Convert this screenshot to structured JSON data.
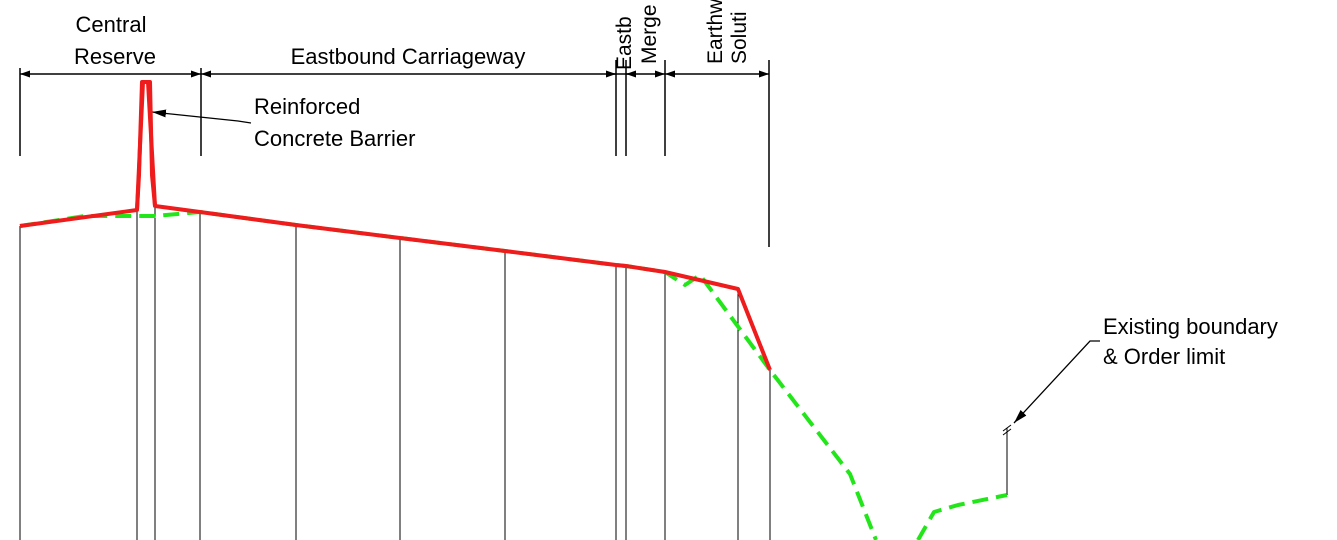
{
  "labels": {
    "central_reserve_line1": "Central",
    "central_reserve_line2": "Reserve",
    "eastbound_carriageway": "Eastbound Carriageway",
    "eastbound_merge_line1": "Eastb",
    "eastbound_merge_line2": "Merge",
    "earthworks_line1": "Earthw",
    "earthworks_line2": "Soluti",
    "barrier_line1": "Reinforced",
    "barrier_line2": "Concrete Barrier",
    "boundary_line1": "Existing boundary",
    "boundary_line2": "& Order limit"
  },
  "colors": {
    "proposed_profile": "#ee1c1c",
    "existing_ground": "#22e51a",
    "linework": "#000000"
  }
}
